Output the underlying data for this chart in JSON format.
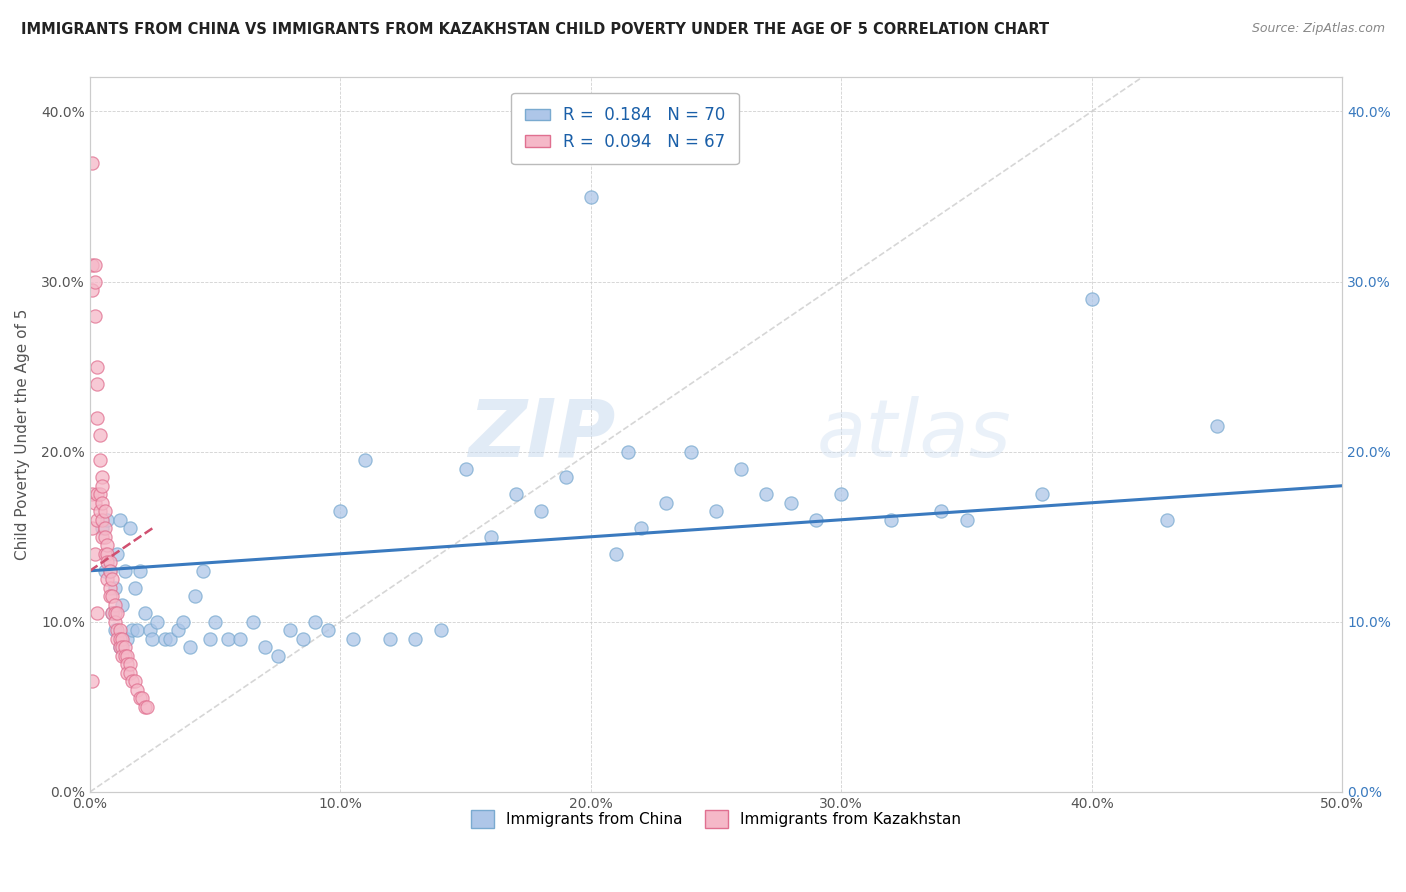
{
  "title": "IMMIGRANTS FROM CHINA VS IMMIGRANTS FROM KAZAKHSTAN CHILD POVERTY UNDER THE AGE OF 5 CORRELATION CHART",
  "source": "Source: ZipAtlas.com",
  "ylabel": "Child Poverty Under the Age of 5",
  "xlim": [
    0.0,
    0.5
  ],
  "ylim": [
    0.0,
    0.42
  ],
  "xticks": [
    0.0,
    0.1,
    0.2,
    0.3,
    0.4,
    0.5
  ],
  "xticklabels": [
    "0.0%",
    "10.0%",
    "20.0%",
    "30.0%",
    "40.0%",
    "50.0%"
  ],
  "yticks": [
    0.0,
    0.1,
    0.2,
    0.3,
    0.4
  ],
  "yticklabels": [
    "0.0%",
    "10.0%",
    "20.0%",
    "30.0%",
    "40.0%"
  ],
  "china_color": "#aec6e8",
  "kaz_color": "#f5b8c8",
  "china_edge": "#7aaad0",
  "kaz_edge": "#e07090",
  "trendline_china_color": "#3a7abf",
  "trendline_kaz_color": "#d05070",
  "diag_color": "#cccccc",
  "R_china": 0.184,
  "N_china": 70,
  "R_kaz": 0.094,
  "N_kaz": 67,
  "legend_label_china": "Immigrants from China",
  "legend_label_kaz": "Immigrants from Kazakhstan",
  "watermark_zip": "ZIP",
  "watermark_atlas": "atlas",
  "china_x": [
    0.005,
    0.006,
    0.007,
    0.008,
    0.009,
    0.01,
    0.01,
    0.011,
    0.012,
    0.012,
    0.013,
    0.014,
    0.015,
    0.016,
    0.017,
    0.018,
    0.019,
    0.02,
    0.022,
    0.024,
    0.025,
    0.027,
    0.03,
    0.032,
    0.035,
    0.037,
    0.04,
    0.042,
    0.045,
    0.048,
    0.05,
    0.055,
    0.06,
    0.065,
    0.07,
    0.075,
    0.08,
    0.085,
    0.09,
    0.095,
    0.1,
    0.105,
    0.11,
    0.12,
    0.13,
    0.14,
    0.15,
    0.16,
    0.17,
    0.18,
    0.19,
    0.2,
    0.21,
    0.215,
    0.22,
    0.23,
    0.24,
    0.25,
    0.26,
    0.27,
    0.28,
    0.29,
    0.3,
    0.32,
    0.34,
    0.35,
    0.38,
    0.4,
    0.43,
    0.45
  ],
  "china_y": [
    0.155,
    0.13,
    0.16,
    0.13,
    0.105,
    0.12,
    0.095,
    0.14,
    0.16,
    0.085,
    0.11,
    0.13,
    0.09,
    0.155,
    0.095,
    0.12,
    0.095,
    0.13,
    0.105,
    0.095,
    0.09,
    0.1,
    0.09,
    0.09,
    0.095,
    0.1,
    0.085,
    0.115,
    0.13,
    0.09,
    0.1,
    0.09,
    0.09,
    0.1,
    0.085,
    0.08,
    0.095,
    0.09,
    0.1,
    0.095,
    0.165,
    0.09,
    0.195,
    0.09,
    0.09,
    0.095,
    0.19,
    0.15,
    0.175,
    0.165,
    0.185,
    0.35,
    0.14,
    0.2,
    0.155,
    0.17,
    0.2,
    0.165,
    0.19,
    0.175,
    0.17,
    0.16,
    0.175,
    0.16,
    0.165,
    0.16,
    0.175,
    0.29,
    0.16,
    0.215
  ],
  "kaz_x": [
    0.001,
    0.001,
    0.001,
    0.001,
    0.001,
    0.001,
    0.002,
    0.002,
    0.002,
    0.002,
    0.002,
    0.003,
    0.003,
    0.003,
    0.003,
    0.003,
    0.003,
    0.004,
    0.004,
    0.004,
    0.004,
    0.005,
    0.005,
    0.005,
    0.005,
    0.005,
    0.006,
    0.006,
    0.006,
    0.006,
    0.007,
    0.007,
    0.007,
    0.007,
    0.008,
    0.008,
    0.008,
    0.008,
    0.009,
    0.009,
    0.009,
    0.01,
    0.01,
    0.01,
    0.011,
    0.011,
    0.011,
    0.012,
    0.012,
    0.012,
    0.013,
    0.013,
    0.013,
    0.014,
    0.014,
    0.015,
    0.015,
    0.015,
    0.016,
    0.016,
    0.017,
    0.018,
    0.019,
    0.02,
    0.021,
    0.022,
    0.023
  ],
  "kaz_y": [
    0.37,
    0.31,
    0.295,
    0.175,
    0.155,
    0.065,
    0.31,
    0.3,
    0.28,
    0.17,
    0.14,
    0.25,
    0.24,
    0.22,
    0.175,
    0.16,
    0.105,
    0.21,
    0.195,
    0.175,
    0.165,
    0.185,
    0.18,
    0.17,
    0.16,
    0.15,
    0.165,
    0.155,
    0.15,
    0.14,
    0.145,
    0.14,
    0.135,
    0.125,
    0.135,
    0.13,
    0.12,
    0.115,
    0.125,
    0.115,
    0.105,
    0.11,
    0.105,
    0.1,
    0.105,
    0.095,
    0.09,
    0.095,
    0.09,
    0.085,
    0.09,
    0.085,
    0.08,
    0.085,
    0.08,
    0.08,
    0.075,
    0.07,
    0.075,
    0.07,
    0.065,
    0.065,
    0.06,
    0.055,
    0.055,
    0.05,
    0.05
  ],
  "china_trend_x0": 0.0,
  "china_trend_y0": 0.13,
  "china_trend_x1": 0.5,
  "china_trend_y1": 0.18,
  "kaz_trend_x0": 0.0,
  "kaz_trend_y0": 0.13,
  "kaz_trend_x1": 0.025,
  "kaz_trend_y1": 0.155
}
